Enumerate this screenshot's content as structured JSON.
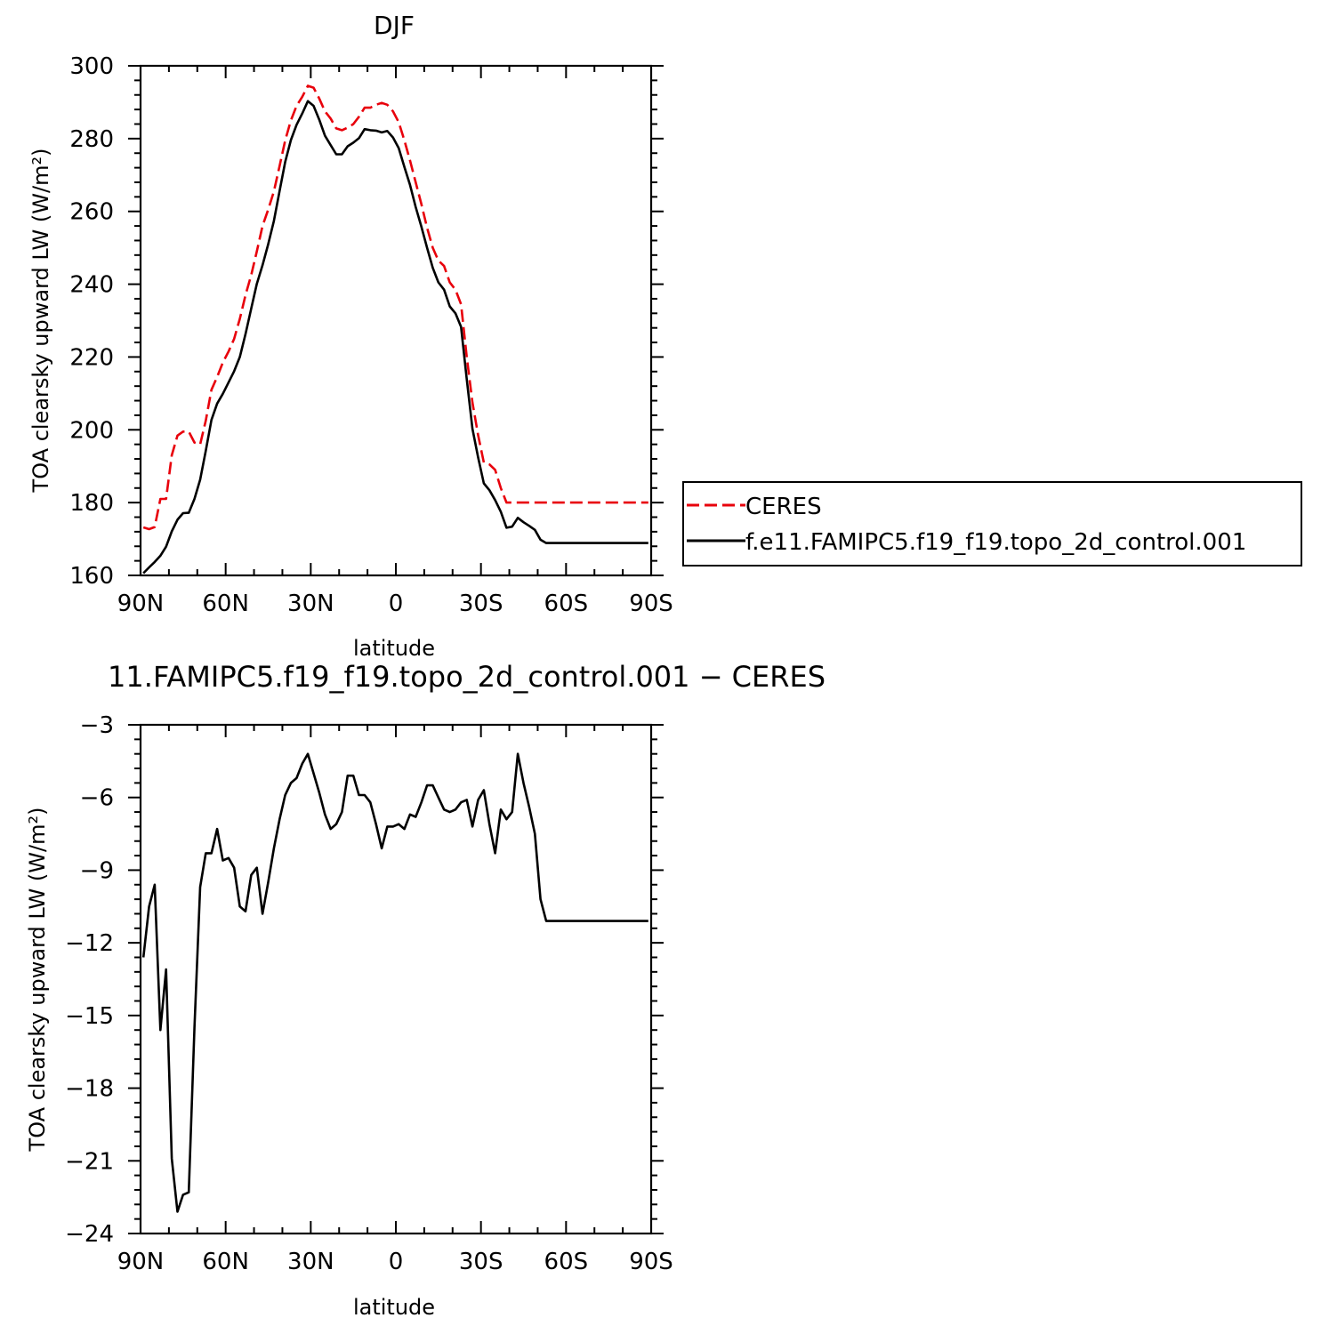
{
  "chart_data": [
    {
      "type": "line",
      "title": "DJF",
      "xlabel": "latitude",
      "ylabel": "TOA clearsky upward LW (W/m²)",
      "xlim": [
        -90,
        90
      ],
      "ylim": [
        160,
        300
      ],
      "x_ticks": [
        {
          "value": -90,
          "label": "90N"
        },
        {
          "value": -60,
          "label": "60N"
        },
        {
          "value": -30,
          "label": "30N"
        },
        {
          "value": 0,
          "label": "0"
        },
        {
          "value": 30,
          "label": "30S"
        },
        {
          "value": 60,
          "label": "60S"
        },
        {
          "value": 90,
          "label": "90S"
        }
      ],
      "y_ticks": [
        160,
        180,
        200,
        220,
        240,
        260,
        280,
        300
      ],
      "legend": "right",
      "series": [
        {
          "name": "CERES",
          "color": "#e8000b",
          "dash": "dashed",
          "x": [
            -89,
            -87,
            -85,
            -83,
            -81,
            -79,
            -77,
            -75,
            -73,
            -71,
            -69,
            -67,
            -65,
            -63,
            -61,
            -59,
            -57,
            -55,
            -53,
            -51,
            -49,
            -47,
            -45,
            -43,
            -41,
            -39,
            -37,
            -35,
            -33,
            -31,
            -29,
            -27,
            -25,
            -23,
            -21,
            -19,
            -17,
            -15,
            -13,
            -11,
            -9,
            -7,
            -5,
            -3,
            -1,
            1,
            3,
            5,
            7,
            9,
            11,
            13,
            15,
            17,
            19,
            21,
            23,
            25,
            27,
            29,
            31,
            33,
            35,
            37,
            39,
            41,
            43,
            45,
            47,
            49,
            51,
            53,
            55,
            57,
            59,
            61,
            63,
            65,
            67,
            69,
            71,
            73,
            75,
            77,
            79,
            81,
            83,
            85,
            87,
            89
          ],
          "y": [
            173.2,
            172.7,
            173.3,
            181.0,
            181.0,
            193.0,
            198.4,
            199.5,
            199.5,
            196.5,
            196.0,
            202.5,
            211.0,
            214.5,
            218.5,
            221.5,
            225.0,
            230.5,
            237.0,
            242.5,
            249.0,
            256.0,
            260.5,
            265.5,
            272.5,
            279.5,
            285.0,
            289.0,
            291.5,
            294.5,
            294.0,
            291.0,
            287.5,
            285.5,
            282.8,
            282.3,
            283.0,
            284.0,
            286.0,
            288.5,
            288.5,
            289.3,
            289.8,
            289.3,
            287.5,
            284.5,
            279.5,
            274.0,
            268.0,
            262.0,
            255.5,
            250.0,
            246.5,
            245.0,
            240.5,
            238.5,
            234.5,
            220.0,
            207.5,
            198.5,
            191.0,
            190.5,
            189.0,
            184.0,
            180.0,
            180.0,
            180.0,
            180.0,
            180.0,
            180.0,
            180.0,
            180.0,
            180.0,
            180.0,
            180.0,
            180.0,
            180.0,
            180.0,
            180.0,
            180.0,
            180.0,
            180.0,
            180.0,
            180.0,
            180.0,
            180.0,
            180.0,
            180.0,
            180.0,
            180.0
          ]
        },
        {
          "name": "f.e11.FAMIPC5.f19_f19.topo_2d_control.001",
          "color": "#000000",
          "dash": "solid",
          "x": [],
          "y": []
        }
      ]
    },
    {
      "type": "line",
      "title": "11.FAMIPC5.f19_f19.topo_2d_control.001 − CERES",
      "xlabel": "latitude",
      "ylabel": "TOA clearsky upward LW (W/m²)",
      "xlim": [
        -90,
        90
      ],
      "ylim": [
        -24,
        -3
      ],
      "x_ticks": [
        {
          "value": -90,
          "label": "90N"
        },
        {
          "value": -60,
          "label": "60N"
        },
        {
          "value": -30,
          "label": "30N"
        },
        {
          "value": 0,
          "label": "0"
        },
        {
          "value": 30,
          "label": "30S"
        },
        {
          "value": 60,
          "label": "60S"
        },
        {
          "value": 90,
          "label": "90S"
        }
      ],
      "y_ticks": [
        -24,
        -21,
        -18,
        -15,
        -12,
        -9,
        -6,
        -3
      ],
      "series": [
        {
          "name": "",
          "color": "#000000",
          "dash": "solid",
          "x": [
            -89,
            -87,
            -85,
            -83,
            -81,
            -79,
            -77,
            -75,
            -73,
            -71,
            -69,
            -67,
            -65,
            -63,
            -61,
            -59,
            -57,
            -55,
            -53,
            -51,
            -49,
            -47,
            -45,
            -43,
            -41,
            -39,
            -37,
            -35,
            -33,
            -31,
            -29,
            -27,
            -25,
            -23,
            -21,
            -19,
            -17,
            -15,
            -13,
            -11,
            -9,
            -7,
            -5,
            -3,
            -1,
            1,
            3,
            5,
            7,
            9,
            11,
            13,
            15,
            17,
            19,
            21,
            23,
            25,
            27,
            29,
            31,
            33,
            35,
            37,
            39,
            41,
            43,
            45,
            47,
            49,
            51,
            53,
            55,
            57,
            59,
            61,
            63,
            65,
            67,
            69,
            71,
            73,
            75,
            77,
            79,
            81,
            83,
            85,
            87,
            89
          ],
          "y": [
            -12.6,
            -10.5,
            -9.6,
            -15.6,
            -13.1,
            -20.9,
            -23.1,
            -22.4,
            -22.3,
            -15.5,
            -9.7,
            -8.3,
            -8.3,
            -7.3,
            -8.6,
            -8.5,
            -8.9,
            -10.5,
            -10.7,
            -9.2,
            -8.9,
            -10.8,
            -9.5,
            -8.1,
            -6.9,
            -5.9,
            -5.4,
            -5.2,
            -4.6,
            -4.2,
            -5.0,
            -5.8,
            -6.7,
            -7.3,
            -7.1,
            -6.6,
            -5.1,
            -5.1,
            -5.9,
            -5.9,
            -6.2,
            -7.1,
            -8.1,
            -7.2,
            -7.2,
            -7.1,
            -7.3,
            -6.7,
            -6.8,
            -6.2,
            -5.5,
            -5.5,
            -6.0,
            -6.5,
            -6.6,
            -6.5,
            -6.2,
            -6.1,
            -7.2,
            -6.1,
            -5.7,
            -7.1,
            -8.3,
            -6.5,
            -6.9,
            -6.6,
            -4.2,
            -5.4,
            -6.4,
            -7.5,
            -10.2,
            -11.1,
            -11.1,
            -11.1,
            -11.1,
            -11.1,
            -11.1,
            -11.1,
            -11.1,
            -11.1,
            -11.1,
            -11.1,
            -11.1,
            -11.1,
            -11.1,
            -11.1,
            -11.1,
            -11.1,
            -11.1,
            -11.1
          ]
        }
      ]
    }
  ]
}
